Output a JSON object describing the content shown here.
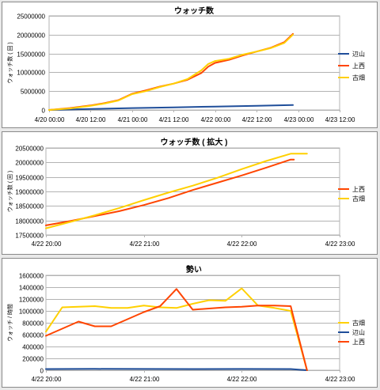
{
  "chart_data": [
    {
      "type": "line",
      "title": "ウォッチ数",
      "ylabel": "ウォッチ数 ( 回 )",
      "xlabel": "",
      "x_range": [
        0,
        84
      ],
      "x_ticks": [
        0,
        12,
        24,
        36,
        48,
        60,
        72,
        84
      ],
      "x_tick_labels": [
        "4/20 00:00",
        "4/20 12:00",
        "4/21 00:00",
        "4/21 12:00",
        "4/22 00:00",
        "4/22 12:00",
        "4/23 00:00",
        "4/23 12:00"
      ],
      "ylim": [
        0,
        25000000
      ],
      "y_ticks": [
        0,
        5000000,
        10000000,
        15000000,
        20000000,
        25000000
      ],
      "grid": true,
      "legend": "right",
      "series": [
        {
          "name": "辺山",
          "color": "#1f4e9a",
          "x": [
            0,
            12,
            24,
            36,
            48,
            60,
            70.5
          ],
          "values": [
            0,
            250000,
            500000,
            700000,
            900000,
            1100000,
            1300000
          ]
        },
        {
          "name": "上西",
          "color": "#ff4500",
          "x": [
            0,
            6,
            12,
            16,
            20,
            24,
            28,
            32,
            36,
            40,
            44,
            46,
            48,
            52,
            56,
            60,
            64,
            68,
            70.5
          ],
          "values": [
            0,
            500000,
            1200000,
            1800000,
            2600000,
            4300000,
            5200000,
            6200000,
            7000000,
            8000000,
            9800000,
            11500000,
            12500000,
            13300000,
            14500000,
            15500000,
            16500000,
            18000000,
            20200000
          ]
        },
        {
          "name": "古畑",
          "color": "#ffd000",
          "x": [
            0,
            6,
            12,
            16,
            20,
            24,
            28,
            32,
            36,
            40,
            44,
            46,
            48,
            52,
            56,
            60,
            64,
            68,
            70.5
          ],
          "values": [
            0,
            400000,
            1100000,
            1700000,
            2500000,
            4200000,
            5000000,
            6100000,
            7000000,
            8200000,
            10500000,
            12200000,
            13000000,
            13600000,
            14700000,
            15500000,
            16400000,
            17800000,
            20000000
          ]
        }
      ]
    },
    {
      "type": "line",
      "title": "ウォッチ数 ( 拡大 )",
      "ylabel": "ウォッチ数 ( 回 )",
      "xlabel": "",
      "x_range": [
        0,
        3
      ],
      "x_ticks": [
        0,
        1,
        2,
        3
      ],
      "x_tick_labels": [
        "4/22 20:00",
        "4/22 21:00",
        "4/22 22:00",
        "4/22 23:00"
      ],
      "ylim": [
        17500000,
        20500000
      ],
      "y_ticks": [
        17500000,
        18000000,
        18500000,
        19000000,
        19500000,
        20000000,
        20500000
      ],
      "grid": true,
      "legend": "right",
      "series": [
        {
          "name": "上西",
          "color": "#ff4500",
          "x": [
            0,
            0.25,
            0.5,
            0.75,
            1.0,
            1.25,
            1.5,
            1.75,
            2.0,
            2.25,
            2.5,
            2.5333
          ],
          "values": [
            17830000,
            17980000,
            18150000,
            18320000,
            18530000,
            18770000,
            19050000,
            19300000,
            19550000,
            19820000,
            20100000,
            20100000
          ]
        },
        {
          "name": "古畑",
          "color": "#ffd000",
          "x": [
            0,
            0.25,
            0.5,
            0.75,
            1.0,
            1.25,
            1.5,
            1.75,
            2.0,
            2.25,
            2.5,
            2.6,
            2.6667
          ],
          "values": [
            17730000,
            17950000,
            18180000,
            18430000,
            18700000,
            18960000,
            19200000,
            19470000,
            19770000,
            20050000,
            20300000,
            20300000,
            20300000
          ]
        }
      ]
    },
    {
      "type": "line",
      "title": "勢い",
      "ylabel": "ウォッチ / 時間",
      "xlabel": "",
      "x_range": [
        0,
        3
      ],
      "x_ticks": [
        0,
        1,
        2,
        3
      ],
      "x_tick_labels": [
        "4/22 20:00",
        "4/22 21:00",
        "4/22 22:00",
        "4/22 23:00"
      ],
      "ylim": [
        0,
        1600000
      ],
      "y_ticks": [
        0,
        200000,
        400000,
        600000,
        800000,
        1000000,
        1200000,
        1400000,
        1600000
      ],
      "grid": true,
      "legend": "right",
      "series": [
        {
          "name": "古畑",
          "color": "#ffd000",
          "x": [
            0,
            0.1667,
            0.3333,
            0.5,
            0.6667,
            0.8333,
            1.0,
            1.1667,
            1.3333,
            1.5,
            1.6667,
            1.8333,
            2.0,
            2.1667,
            2.3333,
            2.5,
            2.6667
          ],
          "values": [
            650000,
            1060000,
            1070000,
            1080000,
            1050000,
            1050000,
            1090000,
            1060000,
            1050000,
            1120000,
            1180000,
            1170000,
            1380000,
            1090000,
            1050000,
            1000000,
            0
          ]
        },
        {
          "name": "辺山",
          "color": "#1f4e9a",
          "x": [
            0,
            0.5,
            1.0,
            1.5,
            2.0,
            2.5,
            2.6667
          ],
          "values": [
            20000,
            22000,
            21000,
            20000,
            21000,
            20000,
            0
          ]
        },
        {
          "name": "上西",
          "color": "#ff4500",
          "x": [
            0,
            0.1667,
            0.3333,
            0.5,
            0.6667,
            0.8333,
            1.0,
            1.1667,
            1.3333,
            1.5,
            1.6667,
            1.8333,
            2.0,
            2.1667,
            2.3333,
            2.5,
            2.6667
          ],
          "values": [
            580000,
            700000,
            820000,
            740000,
            740000,
            860000,
            980000,
            1080000,
            1370000,
            1020000,
            1040000,
            1060000,
            1070000,
            1090000,
            1090000,
            1080000,
            0
          ]
        }
      ]
    }
  ]
}
